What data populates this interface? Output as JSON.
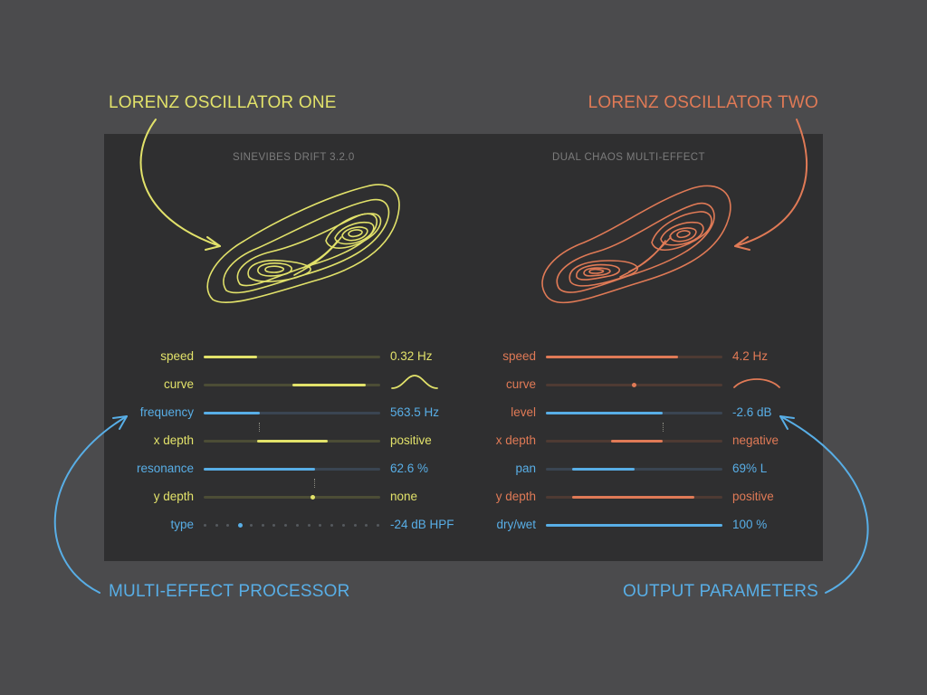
{
  "callouts": {
    "osc_one": "LORENZ OSCILLATOR ONE",
    "osc_two": "LORENZ OSCILLATOR TWO",
    "multi_effect": "MULTI-EFFECT PROCESSOR",
    "output": "OUTPUT PARAMETERS"
  },
  "colors": {
    "yellow": "#e2e26a",
    "orange": "#e07a56",
    "blue": "#58aee6",
    "background": "#4b4b4d",
    "panel": "#2f2f30"
  },
  "panel": {
    "left_title": "SINEVIBES DRIFT 3.2.0",
    "right_title": "DUAL CHAOS MULTI-EFFECT"
  },
  "left_params": {
    "speed": {
      "label": "speed",
      "value": "0.32 Hz",
      "fill": 0.3
    },
    "curve": {
      "label": "curve",
      "start": 0.5,
      "end": 0.92,
      "shape": "bell-curve-icon"
    },
    "frequency": {
      "label": "frequency",
      "value": "563.5 Hz",
      "fill": 0.32
    },
    "x_depth": {
      "label": "x depth",
      "value": "positive",
      "start": 0.3,
      "end": 0.7
    },
    "resonance": {
      "label": "resonance",
      "value": "62.6 %",
      "fill": 0.63
    },
    "y_depth": {
      "label": "y depth",
      "value": "none",
      "position": 0.62
    },
    "type": {
      "label": "type",
      "value": "-24 dB HPF",
      "steps": 16,
      "selected": 3
    }
  },
  "right_params": {
    "speed": {
      "label": "speed",
      "value": "4.2 Hz",
      "fill": 0.75
    },
    "curve": {
      "label": "curve",
      "position": 0.5,
      "shape": "arc-curve-icon"
    },
    "level": {
      "label": "level",
      "value": "-2.6 dB",
      "fill": 0.66
    },
    "x_depth": {
      "label": "x depth",
      "value": "negative",
      "start": 0.37,
      "end": 0.66
    },
    "pan": {
      "label": "pan",
      "value": "69% L",
      "start": 0.15,
      "end": 0.5
    },
    "y_depth": {
      "label": "y depth",
      "value": "positive",
      "start": 0.15,
      "end": 0.84
    },
    "dry_wet": {
      "label": "dry/wet",
      "value": "100 %",
      "fill": 1.0
    }
  }
}
